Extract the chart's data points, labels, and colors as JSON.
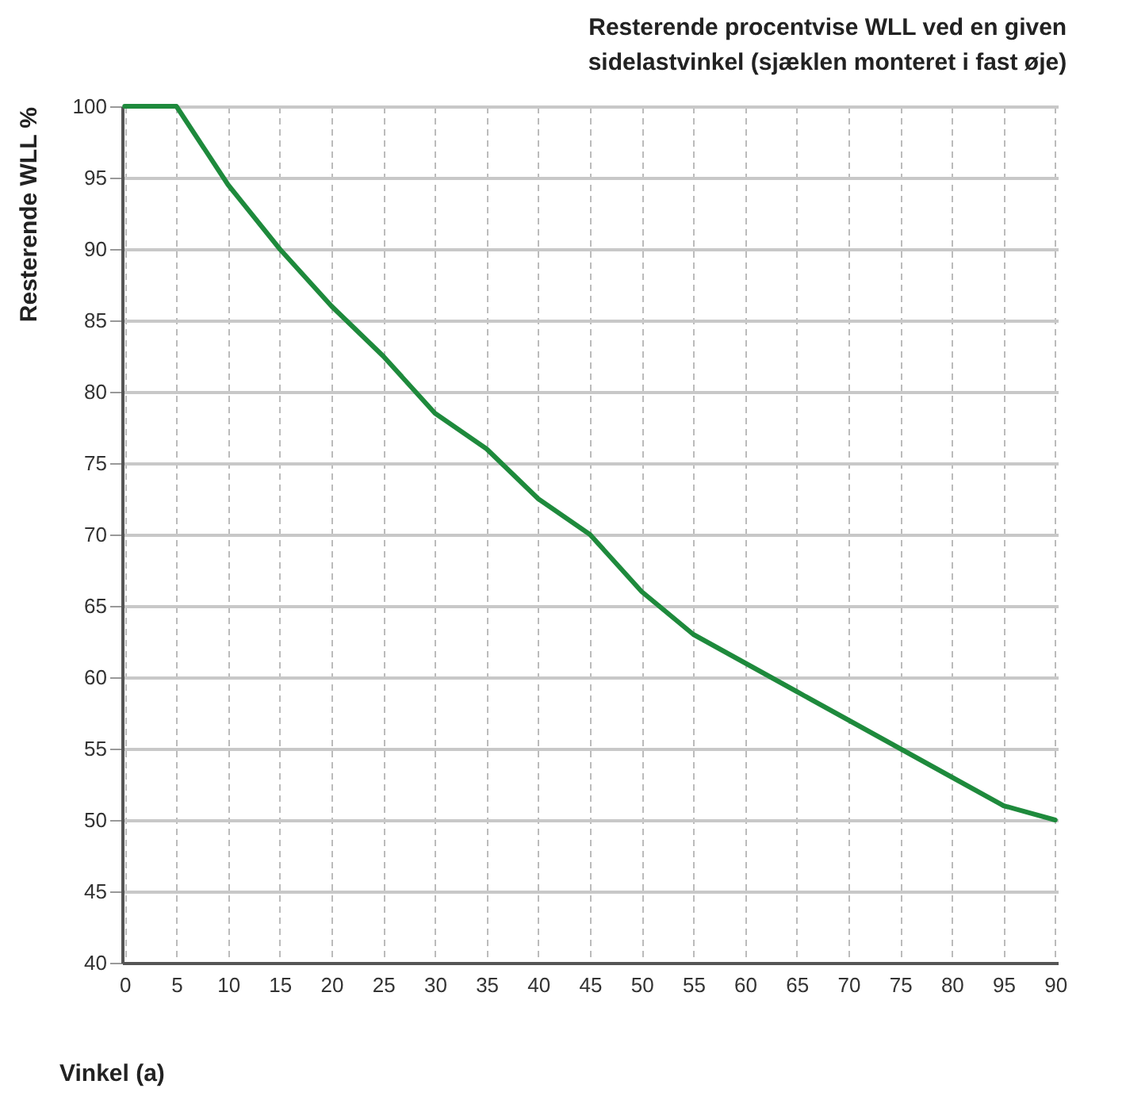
{
  "chart_data": {
    "type": "line",
    "title": "Resterende procentvise WLL ved en given\nsidelastvinkel (sjæklen monteret i fast øje)",
    "xlabel": "Vinkel (a)",
    "ylabel": "Resterende WLL %",
    "categories": [
      "0",
      "5",
      "10",
      "15",
      "20",
      "25",
      "30",
      "35",
      "40",
      "45",
      "50",
      "55",
      "60",
      "65",
      "70",
      "75",
      "80",
      "95",
      "90"
    ],
    "series": [
      {
        "color": "#1e8a3c",
        "values": [
          100,
          100,
          94.5,
          90,
          86,
          82.5,
          78.5,
          76,
          72.5,
          70,
          66,
          63,
          61,
          59,
          57,
          55,
          53,
          51,
          50
        ]
      }
    ],
    "ylim": [
      40,
      100
    ],
    "yticks": [
      40,
      45,
      50,
      55,
      60,
      65,
      70,
      75,
      80,
      85,
      90,
      95,
      100
    ],
    "grid": true,
    "legend": false,
    "marker": "none",
    "line_style": "solid"
  }
}
